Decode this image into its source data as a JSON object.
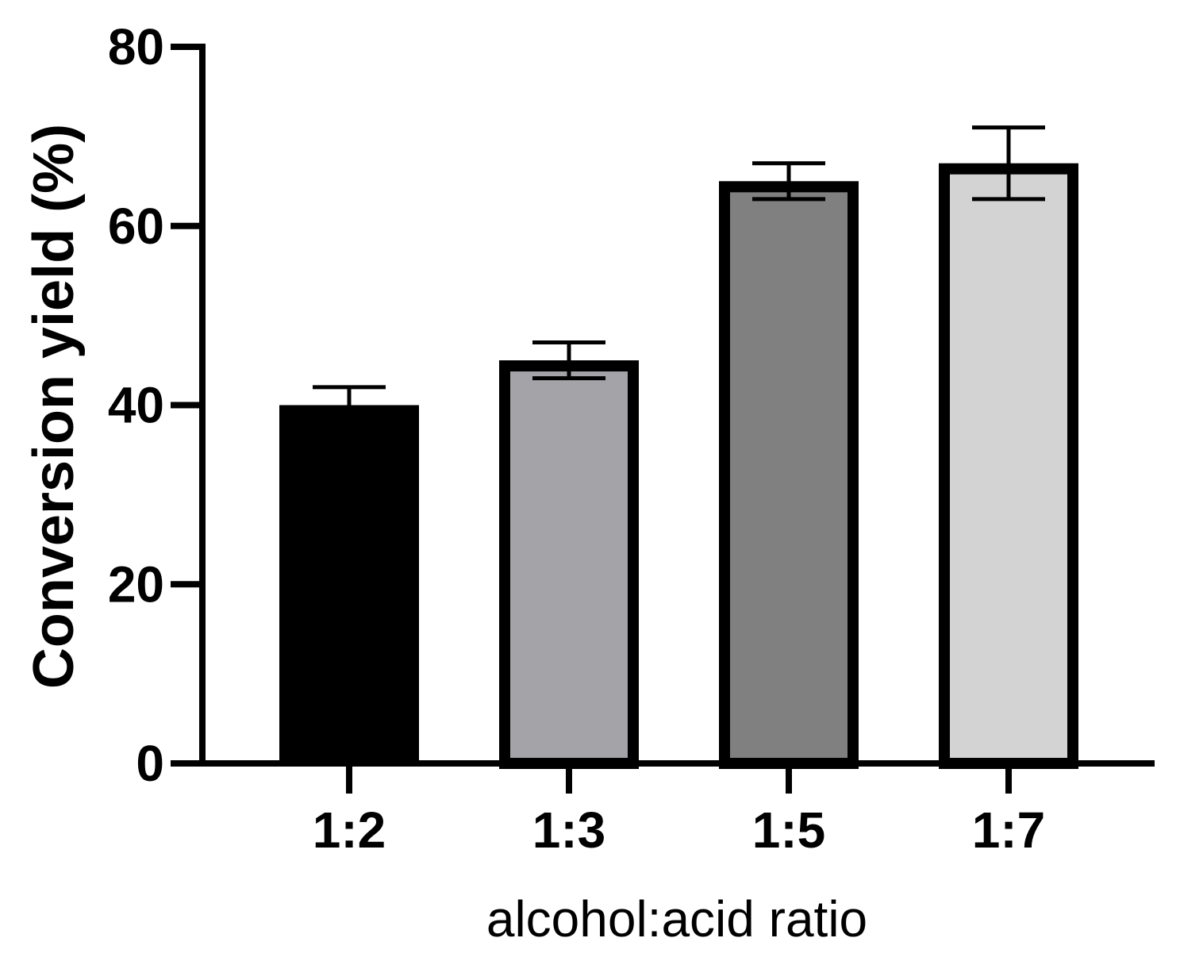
{
  "chart_data": {
    "type": "bar",
    "title": "",
    "xlabel": "alcohol:acid ratio",
    "ylabel": "Conversion yield (%)",
    "categories": [
      "1:2",
      "1:3",
      "1:5",
      "1:7"
    ],
    "values": [
      40,
      45,
      65,
      67
    ],
    "error_low": [
      40,
      43,
      63,
      63
    ],
    "error_high": [
      42,
      47,
      67,
      71
    ],
    "ylim": [
      0,
      80
    ],
    "yticks": [
      0,
      20,
      40,
      60,
      80
    ],
    "ytick_labels": [
      "0",
      "20",
      "40",
      "60",
      "80"
    ],
    "bar_colors": [
      "#000000",
      "#a3a3a8",
      "#808080",
      "#d3d3d3"
    ],
    "bar_edge_color": "#000000",
    "grid": false,
    "legend": "none"
  }
}
